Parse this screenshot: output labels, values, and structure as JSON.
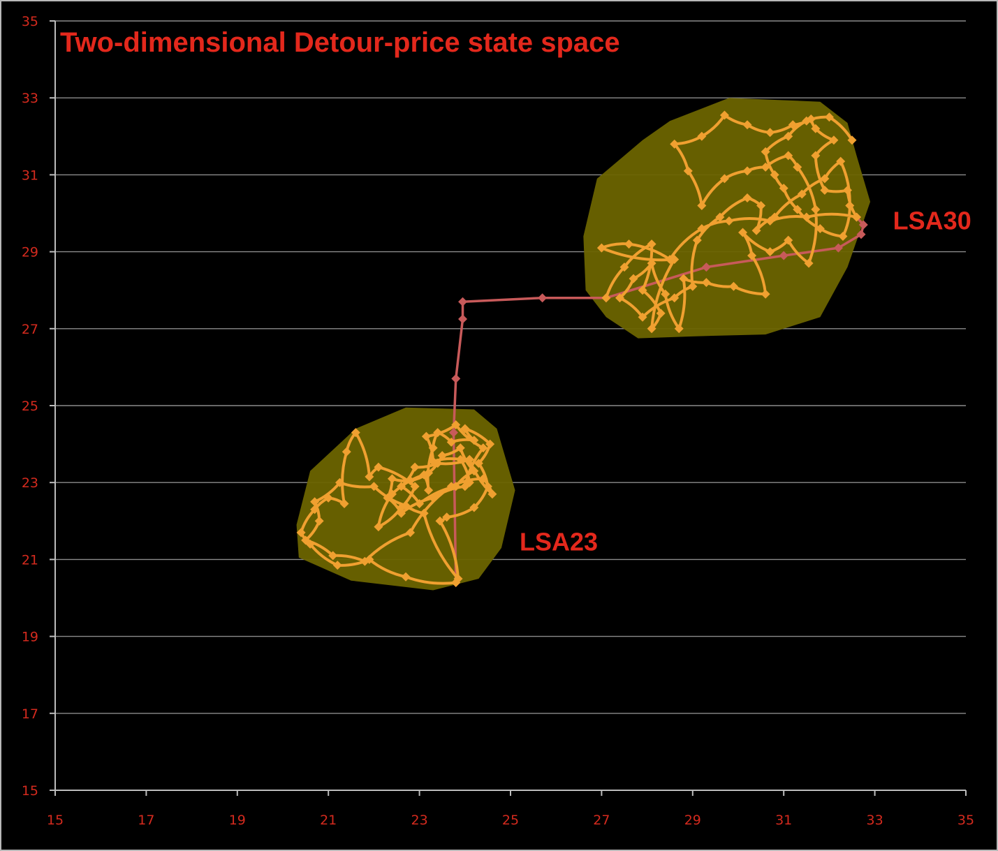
{
  "chart_data": {
    "type": "scatter",
    "title": "Two-dimensional Detour-price state space",
    "xlabel": "",
    "ylabel": "",
    "xlim": [
      15,
      35
    ],
    "ylim": [
      15,
      35
    ],
    "x_ticks": [
      "15",
      "17",
      "19",
      "21",
      "23",
      "25",
      "27",
      "29",
      "31",
      "33",
      "35"
    ],
    "y_ticks": [
      "15",
      "17",
      "19",
      "21",
      "23",
      "25",
      "27",
      "29",
      "31",
      "33",
      "35"
    ],
    "grid": "horizontal",
    "colors": {
      "background": "#000000",
      "grid": "#8c8c8c",
      "tick_text": "#d42a1e",
      "title": "#e3281c",
      "cluster_fill": "#6b6400",
      "cluster_path": "#f0a030",
      "transition_path": "#c85a5a"
    },
    "regions": [
      {
        "label": "LSA23",
        "polygon": [
          [
            20.3,
            21.9
          ],
          [
            20.6,
            23.3
          ],
          [
            21.6,
            24.4
          ],
          [
            22.7,
            24.95
          ],
          [
            24.2,
            24.9
          ],
          [
            24.7,
            24.4
          ],
          [
            25.1,
            22.8
          ],
          [
            24.8,
            21.3
          ],
          [
            24.3,
            20.5
          ],
          [
            23.3,
            20.2
          ],
          [
            21.5,
            20.45
          ],
          [
            20.35,
            21.05
          ]
        ]
      },
      {
        "label": "LSA30",
        "polygon": [
          [
            26.6,
            29.4
          ],
          [
            26.9,
            30.9
          ],
          [
            27.9,
            31.9
          ],
          [
            28.5,
            32.4
          ],
          [
            29.8,
            33.0
          ],
          [
            30.8,
            32.95
          ],
          [
            31.8,
            32.9
          ],
          [
            32.4,
            32.35
          ],
          [
            32.6,
            31.5
          ],
          [
            32.9,
            30.3
          ],
          [
            32.4,
            28.6
          ],
          [
            31.8,
            27.3
          ],
          [
            30.6,
            26.85
          ],
          [
            29.0,
            26.8
          ],
          [
            27.8,
            26.75
          ],
          [
            27.1,
            27.3
          ],
          [
            26.65,
            28.0
          ]
        ]
      }
    ],
    "series": [
      {
        "name": "",
        "style": "transition",
        "points": [
          [
            23.8,
            20.4
          ],
          [
            23.75,
            24.3
          ],
          [
            23.8,
            25.7
          ],
          [
            23.95,
            27.25
          ],
          [
            23.95,
            27.7
          ],
          [
            25.7,
            27.8
          ],
          [
            27.1,
            27.8
          ],
          [
            29.3,
            28.6
          ],
          [
            31.0,
            28.9
          ],
          [
            32.2,
            29.1
          ],
          [
            32.7,
            29.45
          ],
          [
            32.75,
            29.7
          ],
          [
            32.6,
            29.9
          ]
        ]
      },
      {
        "name": "",
        "style": "cluster",
        "points": [
          [
            23.8,
            20.4
          ],
          [
            22.7,
            20.55
          ],
          [
            21.9,
            21.0
          ],
          [
            21.2,
            20.85
          ],
          [
            20.6,
            21.4
          ],
          [
            20.4,
            21.7
          ],
          [
            20.7,
            22.3
          ],
          [
            21.0,
            22.6
          ],
          [
            21.35,
            22.45
          ],
          [
            21.4,
            23.8
          ],
          [
            21.6,
            24.3
          ],
          [
            21.9,
            23.15
          ],
          [
            22.1,
            23.4
          ],
          [
            22.9,
            22.9
          ],
          [
            22.6,
            22.35
          ],
          [
            22.1,
            21.85
          ],
          [
            22.4,
            22.7
          ],
          [
            23.1,
            23.2
          ],
          [
            23.2,
            22.8
          ],
          [
            23.3,
            23.9
          ],
          [
            23.4,
            24.3
          ],
          [
            23.7,
            24.05
          ],
          [
            24.2,
            24.1
          ],
          [
            24.0,
            24.4
          ],
          [
            24.55,
            24.0
          ],
          [
            24.3,
            23.5
          ],
          [
            24.5,
            22.9
          ],
          [
            24.2,
            22.35
          ],
          [
            23.6,
            22.1
          ],
          [
            23.45,
            22.0
          ],
          [
            23.85,
            20.5
          ],
          [
            23.1,
            22.2
          ],
          [
            22.7,
            22.4
          ],
          [
            22.0,
            22.9
          ],
          [
            21.25,
            23.0
          ],
          [
            20.7,
            22.5
          ],
          [
            20.8,
            22.0
          ],
          [
            20.5,
            21.5
          ],
          [
            21.1,
            21.1
          ],
          [
            21.8,
            20.95
          ],
          [
            22.8,
            21.7
          ],
          [
            23.7,
            22.9
          ],
          [
            24.4,
            23.1
          ],
          [
            24.6,
            22.7
          ],
          [
            24.1,
            23.6
          ],
          [
            23.4,
            23.5
          ],
          [
            22.9,
            23.4
          ],
          [
            22.6,
            22.9
          ],
          [
            23.0,
            22.45
          ],
          [
            23.8,
            22.9
          ],
          [
            24.2,
            23.3
          ],
          [
            23.9,
            23.9
          ],
          [
            23.5,
            23.7
          ],
          [
            23.2,
            23.25
          ],
          [
            22.8,
            23.05
          ],
          [
            22.4,
            23.1
          ],
          [
            22.3,
            22.6
          ],
          [
            22.6,
            22.2
          ],
          [
            23.3,
            22.6
          ],
          [
            24.0,
            22.9
          ],
          [
            24.4,
            23.9
          ],
          [
            23.8,
            24.5
          ],
          [
            23.15,
            24.2
          ],
          [
            23.3,
            23.55
          ],
          [
            23.9,
            23.6
          ],
          [
            24.1,
            23.0
          ]
        ]
      },
      {
        "name": "",
        "style": "cluster",
        "points": [
          [
            27.1,
            27.8
          ],
          [
            27.5,
            28.6
          ],
          [
            28.1,
            29.2
          ],
          [
            27.9,
            28.0
          ],
          [
            28.3,
            27.4
          ],
          [
            28.1,
            27.0
          ],
          [
            28.6,
            28.8
          ],
          [
            27.0,
            29.1
          ],
          [
            27.6,
            29.2
          ],
          [
            28.5,
            28.8
          ],
          [
            29.2,
            29.6
          ],
          [
            29.8,
            29.8
          ],
          [
            30.7,
            29.8
          ],
          [
            31.5,
            29.9
          ],
          [
            32.6,
            29.9
          ],
          [
            32.4,
            30.6
          ],
          [
            31.9,
            30.6
          ],
          [
            31.7,
            31.5
          ],
          [
            32.1,
            31.9
          ],
          [
            31.7,
            32.2
          ],
          [
            31.6,
            32.45
          ],
          [
            31.2,
            32.3
          ],
          [
            30.7,
            32.1
          ],
          [
            30.2,
            32.3
          ],
          [
            29.7,
            32.55
          ],
          [
            29.2,
            32.0
          ],
          [
            28.6,
            31.8
          ],
          [
            28.9,
            31.1
          ],
          [
            29.2,
            30.2
          ],
          [
            29.7,
            30.9
          ],
          [
            30.2,
            31.1
          ],
          [
            30.6,
            31.2
          ],
          [
            31.1,
            31.5
          ],
          [
            31.3,
            31.2
          ],
          [
            31.7,
            30.1
          ],
          [
            31.55,
            28.7
          ],
          [
            31.1,
            29.3
          ],
          [
            30.7,
            29.0
          ],
          [
            30.1,
            29.5
          ],
          [
            30.3,
            28.9
          ],
          [
            30.6,
            27.9
          ],
          [
            29.9,
            28.1
          ],
          [
            29.3,
            28.2
          ],
          [
            28.8,
            28.3
          ],
          [
            28.7,
            27.0
          ],
          [
            28.4,
            27.9
          ],
          [
            28.1,
            28.7
          ],
          [
            27.7,
            28.3
          ],
          [
            27.4,
            27.8
          ],
          [
            27.9,
            27.3
          ],
          [
            28.6,
            27.8
          ],
          [
            29.0,
            28.1
          ],
          [
            29.1,
            29.3
          ],
          [
            29.6,
            29.9
          ],
          [
            30.2,
            30.4
          ],
          [
            30.5,
            30.2
          ],
          [
            30.4,
            29.55
          ],
          [
            30.8,
            29.9
          ],
          [
            31.4,
            30.5
          ],
          [
            31.9,
            30.9
          ],
          [
            32.25,
            31.35
          ],
          [
            32.45,
            30.2
          ],
          [
            32.3,
            29.4
          ],
          [
            31.8,
            29.6
          ],
          [
            31.3,
            30.1
          ],
          [
            31.0,
            30.65
          ],
          [
            30.8,
            31.0
          ],
          [
            30.6,
            31.6
          ],
          [
            31.1,
            32.0
          ],
          [
            31.5,
            32.4
          ],
          [
            32.0,
            32.5
          ],
          [
            32.5,
            31.9
          ]
        ]
      }
    ],
    "annotations": [
      {
        "label": "LSA30",
        "x": 33.4,
        "y": 29.8
      },
      {
        "label": "LSA23",
        "x": 25.2,
        "y": 21.45
      }
    ]
  }
}
